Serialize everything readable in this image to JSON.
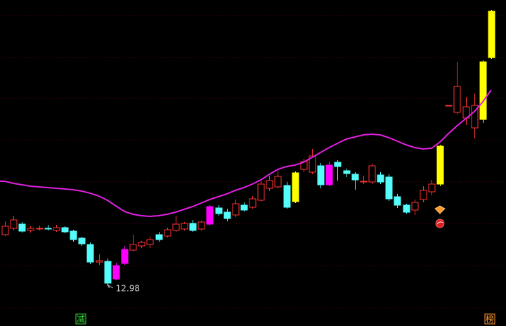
{
  "chart_data": {
    "type": "candlestick",
    "background": "#000000",
    "ylim": [
      11.8,
      21.08
    ],
    "yticks": [
      20.64,
      19.46,
      18.28,
      17.1,
      15.92,
      14.72,
      13.52,
      12.32
    ],
    "grid": true,
    "grid_color": "#5a0000",
    "ohlc": [
      [
        14.4,
        14.78,
        14.36,
        14.64
      ],
      [
        14.58,
        14.94,
        14.52,
        14.82
      ],
      [
        14.7,
        14.76,
        14.46,
        14.5
      ],
      [
        14.52,
        14.64,
        14.46,
        14.58
      ],
      [
        14.56,
        14.66,
        14.52,
        14.58
      ],
      [
        14.58,
        14.68,
        14.52,
        14.56
      ],
      [
        14.52,
        14.68,
        14.48,
        14.6
      ],
      [
        14.6,
        14.64,
        14.44,
        14.48
      ],
      [
        14.5,
        14.54,
        14.2,
        14.26
      ],
      [
        14.3,
        14.34,
        14.08,
        14.14
      ],
      [
        14.12,
        14.18,
        13.56,
        13.62
      ],
      [
        13.62,
        13.84,
        13.54,
        13.66
      ],
      [
        13.64,
        13.72,
        12.98,
        13.02
      ],
      [
        13.14,
        13.6,
        13.1,
        13.52
      ],
      [
        13.58,
        14.08,
        13.54,
        13.98
      ],
      [
        13.96,
        14.4,
        13.92,
        14.12
      ],
      [
        14.08,
        14.22,
        14.02,
        14.18
      ],
      [
        14.12,
        14.34,
        14.02,
        14.26
      ],
      [
        14.4,
        14.48,
        14.2,
        14.26
      ],
      [
        14.36,
        14.6,
        14.32,
        14.54
      ],
      [
        14.52,
        14.94,
        14.48,
        14.7
      ],
      [
        14.56,
        14.76,
        14.52,
        14.72
      ],
      [
        14.72,
        14.82,
        14.48,
        14.52
      ],
      [
        14.56,
        14.8,
        14.52,
        14.76
      ],
      [
        14.7,
        15.24,
        14.66,
        15.2
      ],
      [
        15.16,
        15.24,
        14.94,
        15.0
      ],
      [
        15.04,
        15.14,
        14.78,
        14.86
      ],
      [
        14.96,
        15.4,
        14.9,
        15.28
      ],
      [
        15.24,
        15.32,
        15.06,
        15.1
      ],
      [
        15.18,
        15.5,
        15.14,
        15.42
      ],
      [
        15.38,
        15.92,
        15.34,
        15.84
      ],
      [
        15.72,
        16.08,
        15.64,
        15.94
      ],
      [
        15.76,
        16.2,
        15.72,
        16.06
      ],
      [
        15.8,
        15.9,
        15.14,
        15.18
      ],
      [
        15.34,
        16.2,
        15.3,
        16.16
      ],
      [
        16.26,
        16.56,
        16.18,
        16.48
      ],
      [
        16.18,
        16.84,
        16.12,
        16.64
      ],
      [
        16.36,
        16.44,
        15.72,
        15.82
      ],
      [
        15.82,
        16.48,
        15.78,
        16.38
      ],
      [
        16.46,
        16.52,
        15.94,
        16.34
      ],
      [
        16.22,
        16.28,
        16.04,
        16.14
      ],
      [
        16.12,
        16.18,
        15.68,
        15.96
      ],
      [
        15.9,
        16.08,
        15.84,
        15.92
      ],
      [
        15.9,
        16.42,
        15.84,
        16.36
      ],
      [
        16.1,
        16.18,
        15.84,
        15.9
      ],
      [
        16.04,
        16.12,
        15.36,
        15.42
      ],
      [
        15.48,
        15.56,
        15.16,
        15.24
      ],
      [
        15.24,
        15.28,
        15.0,
        15.04
      ],
      [
        15.1,
        15.4,
        14.96,
        15.32
      ],
      [
        15.4,
        15.78,
        15.32,
        15.66
      ],
      [
        15.62,
        15.96,
        15.52,
        15.84
      ],
      [
        15.84,
        16.96,
        15.78,
        16.92
      ],
      [
        18.08,
        18.08,
        18.08,
        18.08
      ],
      [
        17.88,
        19.32,
        17.82,
        18.62
      ],
      [
        17.72,
        18.32,
        17.52,
        18.04
      ],
      [
        17.44,
        18.42,
        17.14,
        18.08
      ],
      [
        17.68,
        19.36,
        17.58,
        19.32
      ],
      [
        19.44,
        20.8,
        19.4,
        20.76
      ]
    ],
    "colors": [
      "#ff3232",
      "#ff3232",
      "#54fcfc",
      "#ff3232",
      "#ff3232",
      "#54fcfc",
      "#ff3232",
      "#54fcfc",
      "#54fcfc",
      "#54fcfc",
      "#54fcfc",
      "#ff3232",
      "#54fcfc",
      "#ff00ff",
      "#ff00ff",
      "#ff3232",
      "#ff3232",
      "#ff3232",
      "#54fcfc",
      "#ff3232",
      "#ff3232",
      "#ff3232",
      "#54fcfc",
      "#ff3232",
      "#ff00ff",
      "#54fcfc",
      "#54fcfc",
      "#ff3232",
      "#54fcfc",
      "#ff3232",
      "#ff3232",
      "#ff3232",
      "#ff3232",
      "#54fcfc",
      "#ffff00",
      "#ff3232",
      "#ff3232",
      "#54fcfc",
      "#ff00ff",
      "#54fcfc",
      "#54fcfc",
      "#54fcfc",
      "#ff3232",
      "#ff3232",
      "#54fcfc",
      "#54fcfc",
      "#54fcfc",
      "#54fcfc",
      "#ff3232",
      "#ff3232",
      "#ff3232",
      "#ffff00",
      "#ff3232",
      "#ff3232",
      "#ff3232",
      "#ff3232",
      "#ffff00",
      "#ffff00"
    ],
    "ma": {
      "color": "#e020e0",
      "values": [
        15.92,
        15.86,
        15.82,
        15.78,
        15.76,
        15.74,
        15.72,
        15.7,
        15.68,
        15.64,
        15.58,
        15.5,
        15.38,
        15.22,
        15.06,
        14.98,
        14.94,
        14.92,
        14.94,
        14.98,
        15.04,
        15.12,
        15.2,
        15.3,
        15.4,
        15.48,
        15.56,
        15.66,
        15.74,
        15.84,
        15.96,
        16.12,
        16.26,
        16.34,
        16.38,
        16.46,
        16.6,
        16.74,
        16.88,
        17.0,
        17.12,
        17.18,
        17.24,
        17.26,
        17.24,
        17.16,
        17.06,
        16.96,
        16.88,
        16.84,
        16.86,
        17.04,
        17.28,
        17.5,
        17.7,
        17.9,
        18.18,
        18.52
      ]
    },
    "min_label": 12.98,
    "markers": [
      {
        "text": "减",
        "color": "#33dd33"
      },
      {
        "text": "榜",
        "color": "#ff9933"
      }
    ]
  }
}
